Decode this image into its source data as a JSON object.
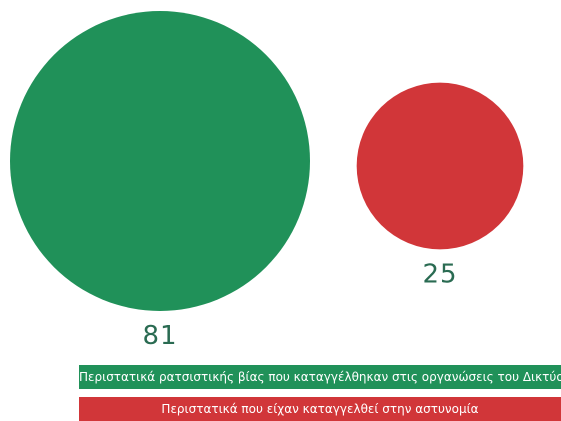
{
  "chart_data": {
    "type": "bubble",
    "title": "",
    "series": [
      {
        "name": "Περιστατικά ρατσιστικής βίας που καταγγέλθηκαν στις οργανώσεις του Δικτύου",
        "value": 81,
        "color": "#209159"
      },
      {
        "name": "Περιστατικά που είχαν καταγγελθεί στην αστυνομία",
        "value": 25,
        "color": "#d13639"
      }
    ],
    "legend_placement": "bottom",
    "label_color": "#2a6b52"
  }
}
